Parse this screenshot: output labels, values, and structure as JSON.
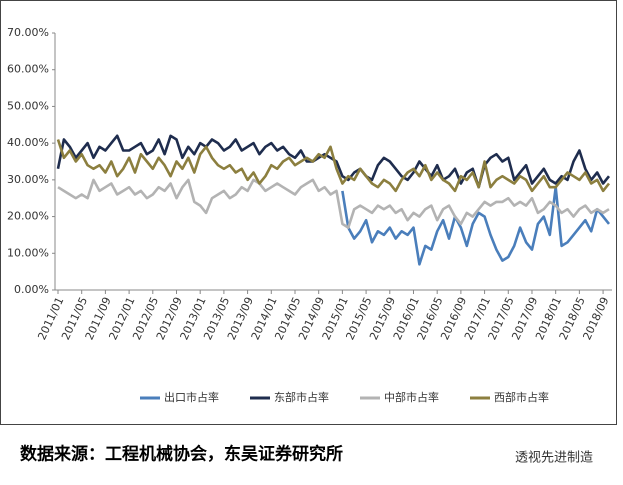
{
  "chart_data": {
    "type": "line",
    "categories": [
      "2011/01",
      null,
      null,
      null,
      "2011/05",
      null,
      null,
      null,
      "2011/09",
      null,
      null,
      null,
      "2012/01",
      null,
      null,
      null,
      "2012/05",
      null,
      null,
      null,
      "2012/09",
      null,
      null,
      null,
      "2013/01",
      null,
      null,
      null,
      "2013/05",
      null,
      null,
      null,
      "2013/09",
      null,
      null,
      null,
      "2014/01",
      null,
      null,
      null,
      "2014/05",
      null,
      null,
      null,
      "2014/09",
      null,
      null,
      null,
      "2015/01",
      null,
      null,
      null,
      "2015/05",
      null,
      null,
      null,
      "2015/09",
      null,
      null,
      null,
      "2016/01",
      null,
      null,
      null,
      "2016/05",
      null,
      null,
      null,
      "2016/09",
      null,
      null,
      null,
      "2017/01",
      null,
      null,
      null,
      "2017/05",
      null,
      null,
      null,
      "2017/09",
      null,
      null,
      null,
      "2018/01",
      null,
      null,
      null,
      "2018/05",
      null,
      null,
      null,
      "2018/09",
      null
    ],
    "series": [
      {
        "name": "出口市占率",
        "color": "#4a7ebb",
        "values": [
          null,
          null,
          null,
          null,
          null,
          null,
          null,
          null,
          null,
          null,
          null,
          null,
          null,
          null,
          null,
          null,
          null,
          null,
          null,
          null,
          null,
          null,
          null,
          null,
          null,
          null,
          null,
          null,
          null,
          null,
          null,
          null,
          null,
          null,
          null,
          null,
          null,
          null,
          null,
          null,
          null,
          null,
          null,
          null,
          null,
          null,
          null,
          null,
          27,
          17,
          14,
          16,
          19,
          13,
          16,
          15,
          17,
          14,
          16,
          15,
          17,
          7,
          12,
          11,
          16,
          19,
          14,
          20,
          17,
          12,
          18,
          21,
          20,
          15,
          11,
          8,
          9,
          12,
          17,
          13,
          11,
          18,
          20,
          15,
          28,
          12,
          13,
          15,
          17,
          19,
          16,
          22,
          20,
          18
        ]
      },
      {
        "name": "东部市占率",
        "color": "#1f2d4e",
        "values": [
          33,
          41,
          39,
          36,
          38,
          40,
          36,
          39,
          38,
          40,
          42,
          38,
          38,
          39,
          40,
          37,
          38,
          41,
          37,
          42,
          41,
          36,
          39,
          37,
          40,
          39,
          41,
          40,
          38,
          39,
          41,
          38,
          39,
          40,
          37,
          39,
          40,
          38,
          39,
          37,
          36,
          38,
          35,
          35,
          36,
          37,
          36,
          35,
          31,
          30,
          32,
          33,
          31,
          30,
          34,
          36,
          35,
          33,
          31,
          30,
          32,
          35,
          33,
          31,
          34,
          30,
          31,
          33,
          29,
          32,
          33,
          28,
          34,
          36,
          37,
          35,
          36,
          30,
          32,
          34,
          29,
          31,
          33,
          30,
          29,
          31,
          30,
          35,
          38,
          33,
          30,
          32,
          29,
          31
        ]
      },
      {
        "name": "中部市占率",
        "color": "#b3b3b3",
        "values": [
          28,
          27,
          26,
          25,
          26,
          25,
          30,
          27,
          28,
          29,
          26,
          27,
          28,
          26,
          27,
          25,
          26,
          28,
          27,
          29,
          25,
          28,
          30,
          24,
          23,
          21,
          25,
          26,
          27,
          25,
          26,
          28,
          27,
          30,
          29,
          27,
          28,
          29,
          28,
          27,
          26,
          28,
          29,
          30,
          27,
          28,
          26,
          27,
          18,
          17,
          22,
          23,
          22,
          21,
          23,
          22,
          23,
          21,
          22,
          19,
          21,
          20,
          22,
          23,
          19,
          22,
          23,
          20,
          18,
          21,
          20,
          22,
          24,
          23,
          24,
          24,
          25,
          23,
          24,
          23,
          25,
          21,
          22,
          24,
          23,
          21,
          22,
          20,
          22,
          23,
          21,
          22,
          21,
          22
        ]
      },
      {
        "name": "西部市占率",
        "color": "#8c7f3f",
        "values": [
          41,
          36,
          38,
          35,
          37,
          34,
          33,
          34,
          32,
          35,
          31,
          33,
          36,
          32,
          37,
          35,
          33,
          36,
          34,
          31,
          35,
          33,
          36,
          32,
          37,
          39,
          36,
          34,
          33,
          34,
          32,
          33,
          30,
          32,
          29,
          31,
          34,
          33,
          35,
          36,
          34,
          35,
          36,
          35,
          37,
          36,
          39,
          33,
          29,
          31,
          30,
          33,
          31,
          29,
          28,
          30,
          29,
          27,
          30,
          32,
          33,
          31,
          34,
          30,
          32,
          30,
          29,
          27,
          31,
          30,
          32,
          28,
          35,
          28,
          30,
          31,
          30,
          29,
          31,
          30,
          27,
          29,
          31,
          28,
          28,
          30,
          32,
          31,
          30,
          32,
          29,
          30,
          27,
          29
        ]
      }
    ],
    "ylim": [
      0,
      70
    ],
    "yticks": [
      {
        "value": 0,
        "label": "0.00%"
      },
      {
        "value": 10,
        "label": "10.00%"
      },
      {
        "value": 20,
        "label": "20.00%"
      },
      {
        "value": 30,
        "label": "30.00%"
      },
      {
        "value": 40,
        "label": "40.00%"
      },
      {
        "value": 50,
        "label": "50.00%"
      },
      {
        "value": 60,
        "label": "60.00%"
      },
      {
        "value": 70,
        "label": "70.00%"
      }
    ],
    "grid": false,
    "legend": "bottom"
  },
  "source": "数据来源：工程机械协会，东吴证券研究所",
  "watermark": "透视先进制造"
}
